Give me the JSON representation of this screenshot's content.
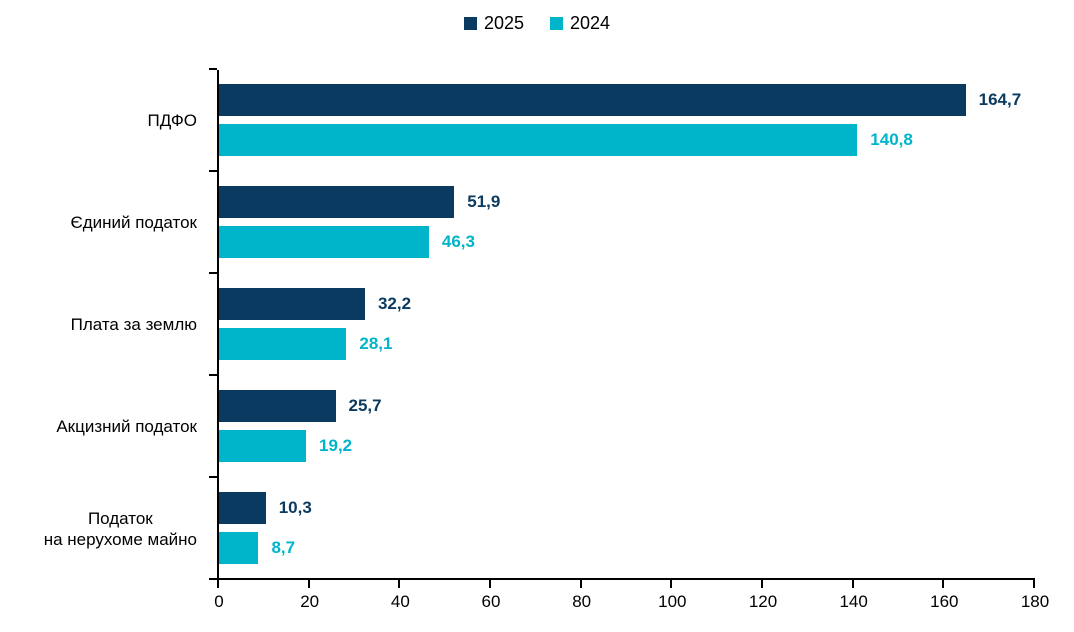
{
  "chart_data": {
    "type": "bar",
    "orientation": "horizontal",
    "title": "",
    "xlabel": "",
    "ylabel": "",
    "categories": [
      "ПДФО",
      "Єдиний податок",
      "Плата за землю",
      "Акцизний податок",
      "Податок\nна нерухоме майно"
    ],
    "series": [
      {
        "name": "2025",
        "color": "#0a3a5f",
        "values": [
          164.7,
          51.9,
          32.2,
          25.7,
          10.3
        ],
        "labels": [
          "164,7",
          "51,9",
          "32,2",
          "25,7",
          "10,3"
        ]
      },
      {
        "name": "2024",
        "color": "#00b5c9",
        "values": [
          140.8,
          46.3,
          28.1,
          19.2,
          8.7
        ],
        "labels": [
          "140,8",
          "46,3",
          "28,1",
          "19,2",
          "8,7"
        ]
      }
    ],
    "xlim": [
      0,
      180
    ],
    "x_ticks": [
      0,
      20,
      40,
      60,
      80,
      100,
      120,
      140,
      160,
      180
    ],
    "x_tick_labels": [
      "0",
      "20",
      "40",
      "60",
      "80",
      "100",
      "120",
      "140",
      "160",
      "180"
    ],
    "legend_position": "top-center",
    "legend_entries": [
      "2025",
      "2024"
    ],
    "grid": false,
    "value_labels": true,
    "axis_color": "#000000",
    "background_color": "#ffffff"
  }
}
